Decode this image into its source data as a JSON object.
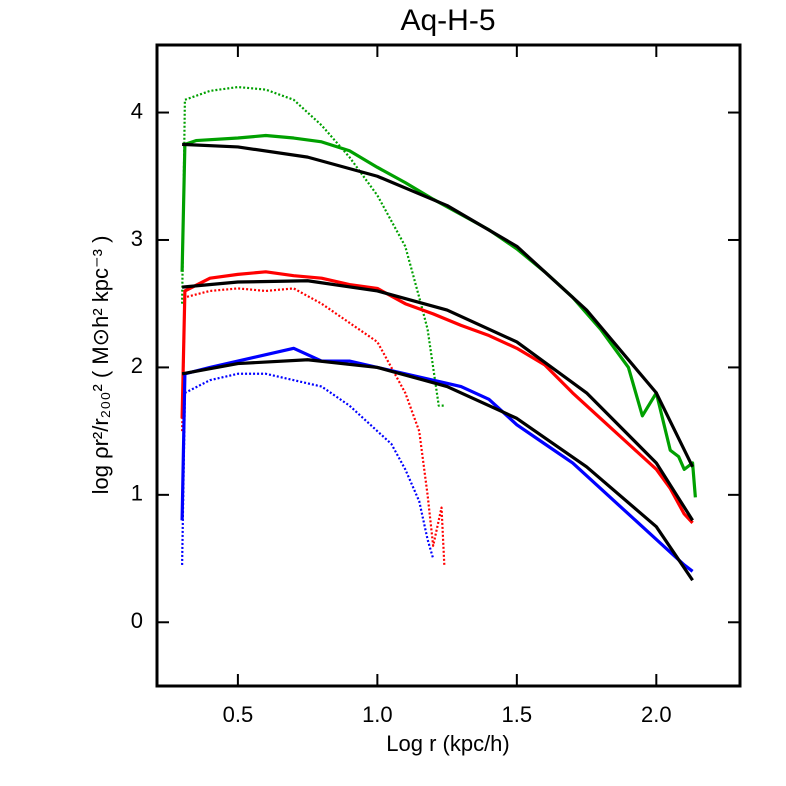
{
  "chart_data": {
    "type": "line",
    "title": "Aq-H-5",
    "xlabel": "Log r (kpc/h)",
    "ylabel": "log ρr²/r₂₀₀² ( M⊙h² kpc⁻³ )",
    "xlim": [
      0.21,
      2.3
    ],
    "ylim": [
      -0.5,
      4.53
    ],
    "xticks": [
      {
        "value": 0.5,
        "label": "0.5"
      },
      {
        "value": 1.0,
        "label": "1.0"
      },
      {
        "value": 1.5,
        "label": "1.5"
      },
      {
        "value": 2.0,
        "label": "2.0"
      }
    ],
    "yticks": [
      0,
      1,
      2,
      3,
      4
    ],
    "series": [
      {
        "color": "#00a000",
        "style": "dotted",
        "x": [
          0.3,
          0.31,
          0.4,
          0.5,
          0.6,
          0.7,
          0.8,
          0.9,
          1.0,
          1.1,
          1.15,
          1.18,
          1.2,
          1.22,
          1.24
        ],
        "values": [
          2.5,
          4.1,
          4.17,
          4.2,
          4.18,
          4.1,
          3.9,
          3.65,
          3.35,
          2.95,
          2.55,
          2.3,
          2.0,
          1.7,
          1.7
        ]
      },
      {
        "color": "#ff0000",
        "style": "dotted",
        "x": [
          0.3,
          0.31,
          0.4,
          0.5,
          0.6,
          0.7,
          0.8,
          0.9,
          1.0,
          1.05,
          1.1,
          1.15,
          1.18,
          1.2,
          1.23,
          1.24
        ],
        "values": [
          1.5,
          2.55,
          2.6,
          2.62,
          2.6,
          2.62,
          2.5,
          2.35,
          2.2,
          2.0,
          1.8,
          1.5,
          1.0,
          0.6,
          0.9,
          0.45
        ]
      },
      {
        "color": "#0000ff",
        "style": "dotted",
        "x": [
          0.3,
          0.31,
          0.4,
          0.5,
          0.6,
          0.7,
          0.8,
          0.9,
          1.0,
          1.05,
          1.1,
          1.15,
          1.18,
          1.2
        ],
        "values": [
          0.45,
          1.8,
          1.9,
          1.95,
          1.95,
          1.9,
          1.85,
          1.7,
          1.5,
          1.4,
          1.2,
          0.95,
          0.65,
          0.5
        ]
      },
      {
        "color": "#00a000",
        "style": "solid",
        "x": [
          0.3,
          0.31,
          0.35,
          0.5,
          0.6,
          0.7,
          0.8,
          0.9,
          1.0,
          1.1,
          1.2,
          1.3,
          1.4,
          1.5,
          1.6,
          1.7,
          1.8,
          1.9,
          1.95,
          2.0,
          2.05,
          2.08,
          2.1,
          2.13,
          2.14
        ],
        "values": [
          2.75,
          3.75,
          3.78,
          3.8,
          3.82,
          3.8,
          3.77,
          3.7,
          3.57,
          3.45,
          3.32,
          3.2,
          3.08,
          2.93,
          2.75,
          2.55,
          2.3,
          2.0,
          1.62,
          1.8,
          1.35,
          1.3,
          1.2,
          1.25,
          0.98
        ]
      },
      {
        "color": "#ff0000",
        "style": "solid",
        "x": [
          0.3,
          0.31,
          0.4,
          0.5,
          0.6,
          0.7,
          0.8,
          0.9,
          1.0,
          1.1,
          1.2,
          1.3,
          1.4,
          1.5,
          1.6,
          1.7,
          1.8,
          1.9,
          2.0,
          2.05,
          2.1,
          2.13
        ],
        "values": [
          1.6,
          2.6,
          2.7,
          2.73,
          2.75,
          2.72,
          2.7,
          2.65,
          2.62,
          2.5,
          2.42,
          2.33,
          2.25,
          2.15,
          2.02,
          1.8,
          1.6,
          1.4,
          1.2,
          1.05,
          0.85,
          0.78
        ]
      },
      {
        "color": "#0000ff",
        "style": "solid",
        "x": [
          0.3,
          0.31,
          0.4,
          0.5,
          0.6,
          0.7,
          0.8,
          0.9,
          1.0,
          1.1,
          1.2,
          1.3,
          1.4,
          1.5,
          1.6,
          1.7,
          1.8,
          1.9,
          2.0,
          2.1,
          2.13
        ],
        "values": [
          0.8,
          1.95,
          2.0,
          2.05,
          2.1,
          2.15,
          2.05,
          2.05,
          2.0,
          1.95,
          1.9,
          1.85,
          1.75,
          1.55,
          1.4,
          1.25,
          1.05,
          0.85,
          0.65,
          0.45,
          0.4
        ]
      },
      {
        "color": "#000000",
        "style": "solid",
        "x": [
          0.3,
          0.5,
          0.75,
          1.0,
          1.25,
          1.5,
          1.75,
          2.0,
          2.13
        ],
        "values": [
          3.75,
          3.73,
          3.65,
          3.5,
          3.27,
          2.95,
          2.45,
          1.8,
          1.22
        ]
      },
      {
        "color": "#000000",
        "style": "solid",
        "x": [
          0.3,
          0.5,
          0.75,
          1.0,
          1.25,
          1.5,
          1.75,
          2.0,
          2.13
        ],
        "values": [
          2.63,
          2.67,
          2.68,
          2.6,
          2.45,
          2.2,
          1.8,
          1.25,
          0.8
        ]
      },
      {
        "color": "#000000",
        "style": "solid",
        "x": [
          0.3,
          0.5,
          0.75,
          1.0,
          1.25,
          1.5,
          1.75,
          2.0,
          2.13
        ],
        "values": [
          1.95,
          2.03,
          2.06,
          2.0,
          1.85,
          1.6,
          1.22,
          0.75,
          0.33
        ]
      }
    ]
  }
}
